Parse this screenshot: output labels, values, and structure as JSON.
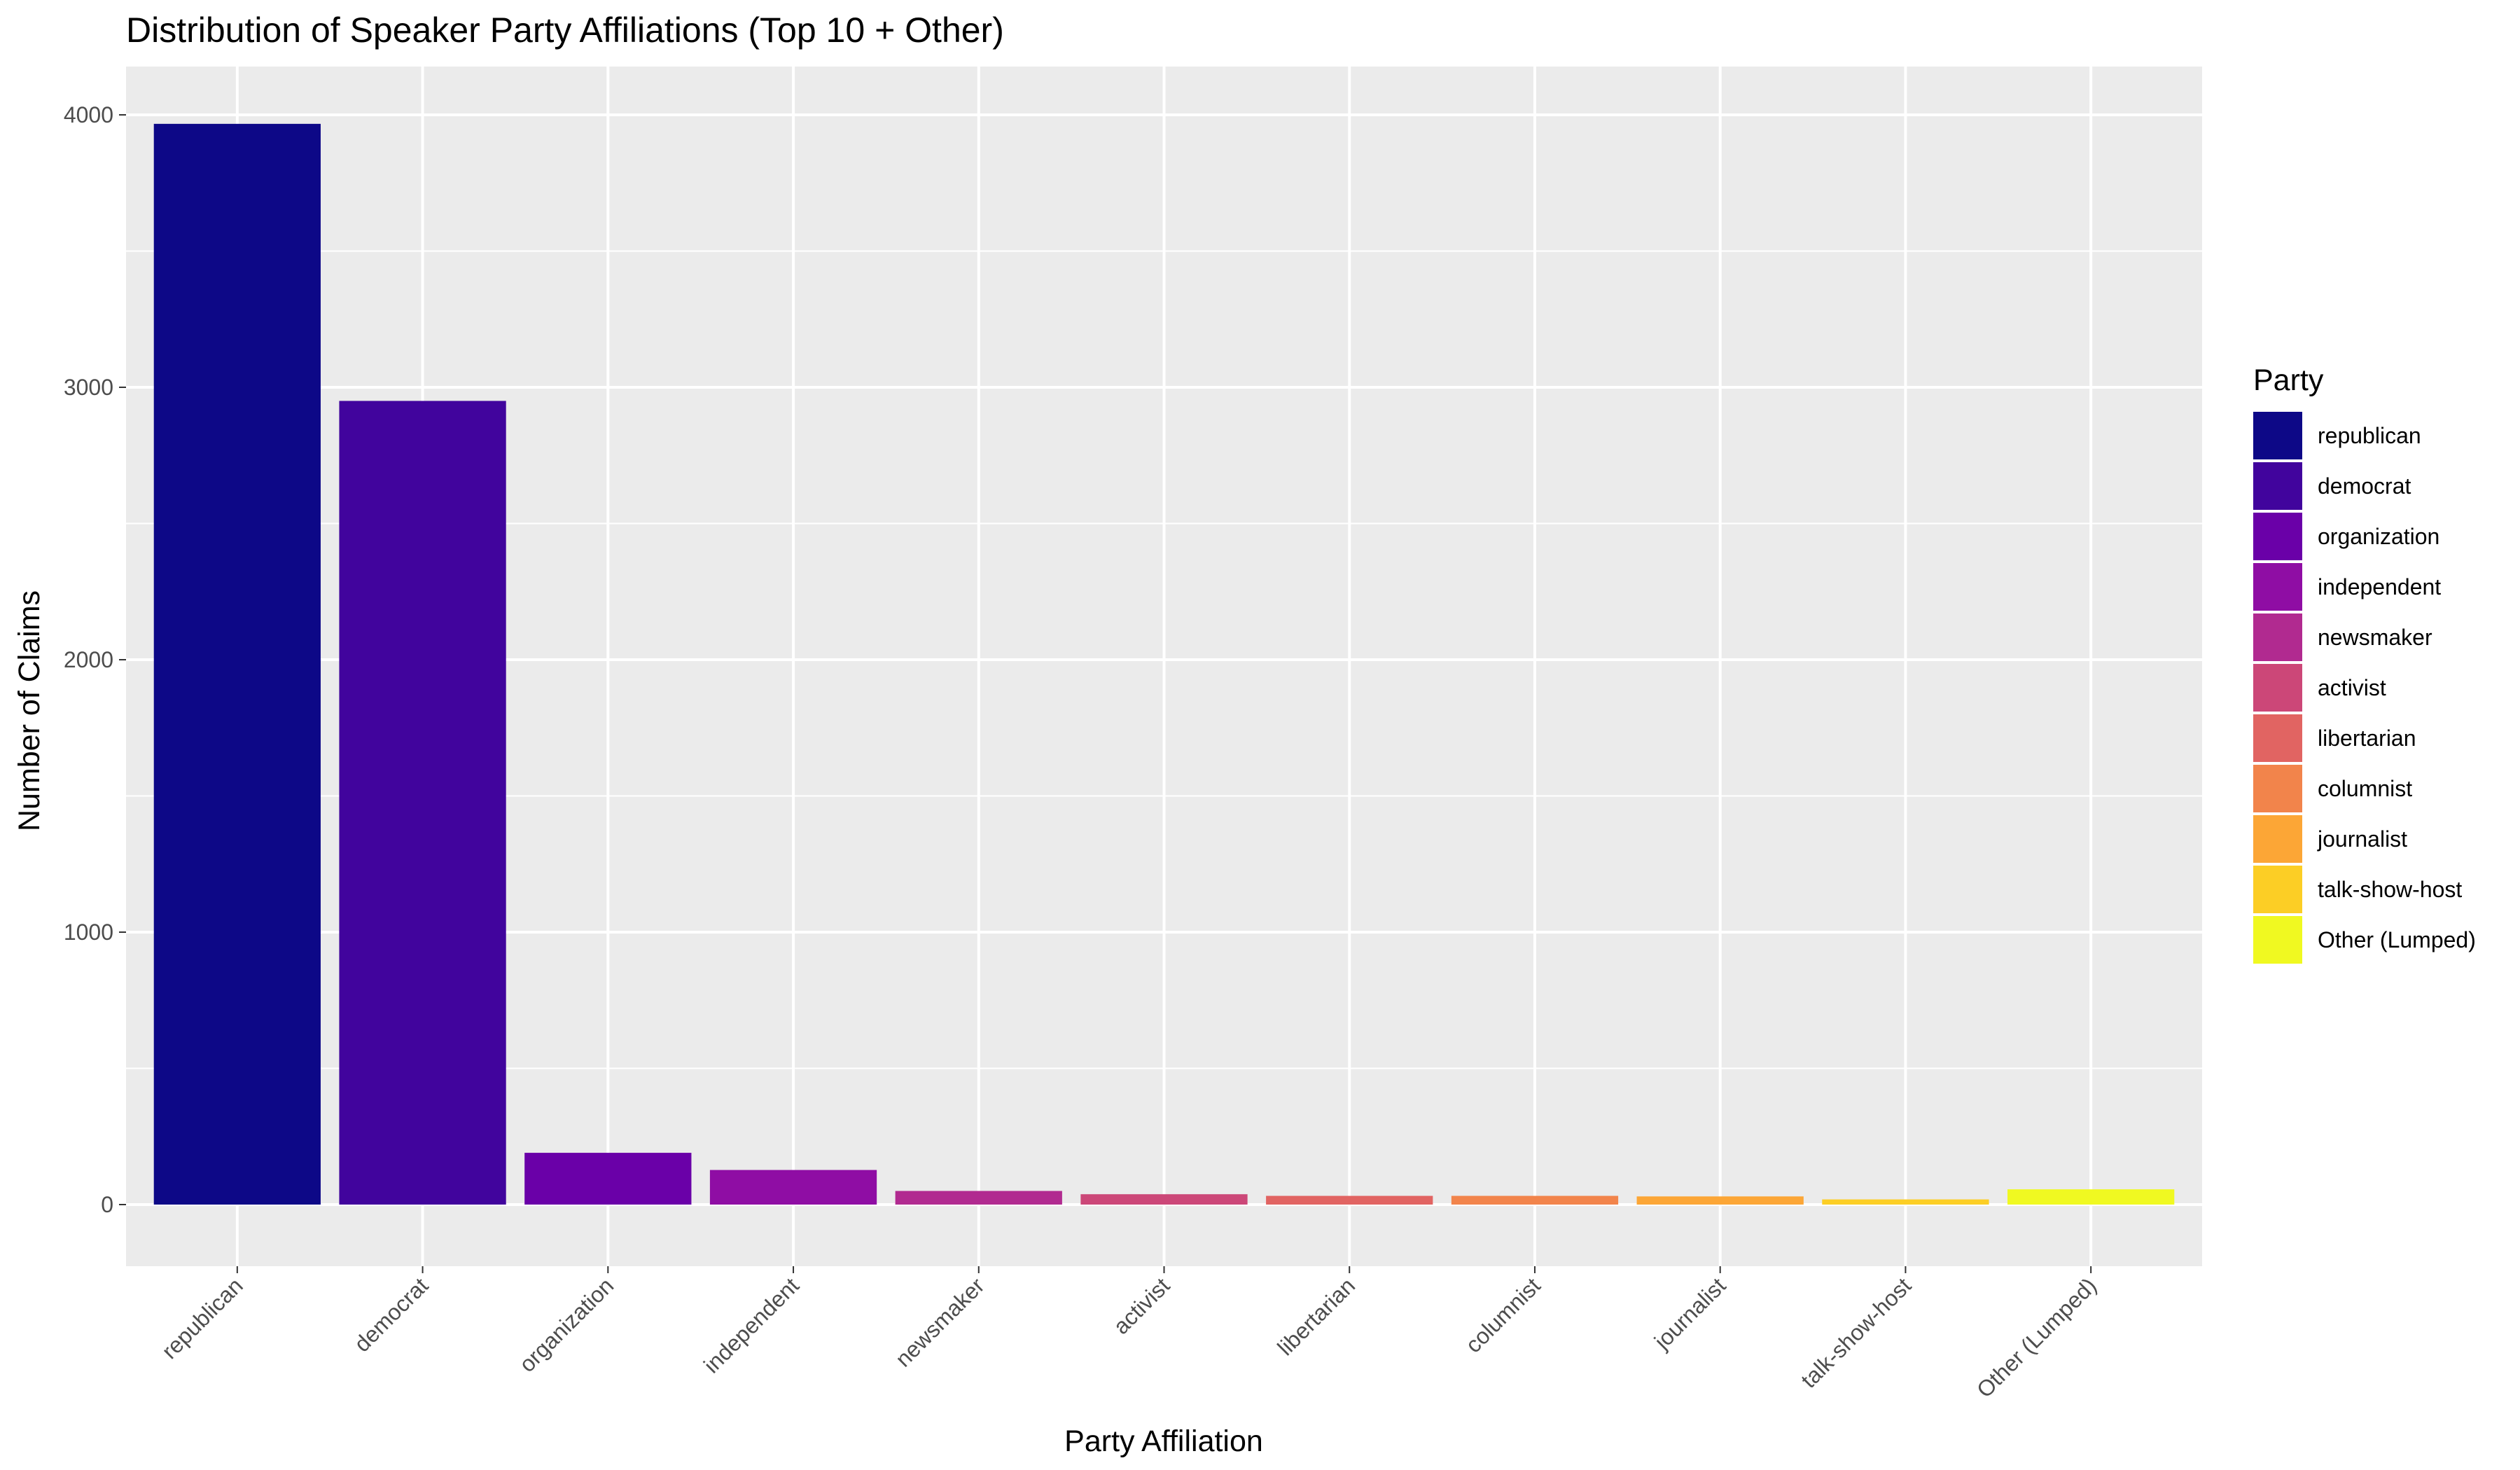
{
  "chart_data": {
    "type": "bar",
    "title": "Distribution of Speaker Party Affiliations (Top 10 + Other)",
    "xlabel": "Party Affiliation",
    "ylabel": "Number of Claims",
    "categories": [
      "republican",
      "democrat",
      "organization",
      "independent",
      "newsmaker",
      "activist",
      "libertarian",
      "columnist",
      "journalist",
      "talk-show-host",
      "Other (Lumped)"
    ],
    "values": [
      3967,
      2950,
      190,
      127,
      50,
      38,
      32,
      32,
      30,
      19,
      56
    ],
    "colors": [
      "#0D0887",
      "#41049D",
      "#6A00A8",
      "#8F0DA4",
      "#B12A90",
      "#CC4778",
      "#E16462",
      "#F2844B",
      "#FCA636",
      "#FCCE25",
      "#F0F921"
    ],
    "ylim": [
      -200,
      4150
    ],
    "yticks": [
      0,
      1000,
      2000,
      3000,
      4000
    ],
    "ytick_labels": [
      "0",
      "1000",
      "2000",
      "3000",
      "4000"
    ],
    "grid": true,
    "legend": {
      "title": "Party",
      "position": "right",
      "entries": [
        "republican",
        "democrat",
        "organization",
        "independent",
        "newsmaker",
        "activist",
        "libertarian",
        "columnist",
        "journalist",
        "talk-show-host",
        "Other (Lumped)"
      ]
    }
  }
}
